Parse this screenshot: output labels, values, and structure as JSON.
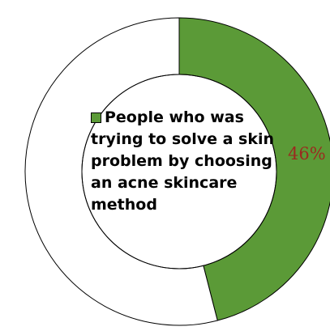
{
  "chart_data": {
    "type": "pie",
    "variant": "doughnut",
    "title": "",
    "categories": [
      "People who was trying to solve a skin problem by choosing an acne skincare method",
      ""
    ],
    "values": [
      46,
      54
    ],
    "data_labels": [
      "46%"
    ],
    "colors": [
      "#5b9a37",
      "#ffffff"
    ],
    "legend": {
      "placement": "center",
      "entries": [
        "People who was trying to solve a skin problem by choosing an acne skincare method"
      ]
    }
  },
  "style": {
    "outline_color": "#000000",
    "label_color": "#9b2a1f"
  }
}
